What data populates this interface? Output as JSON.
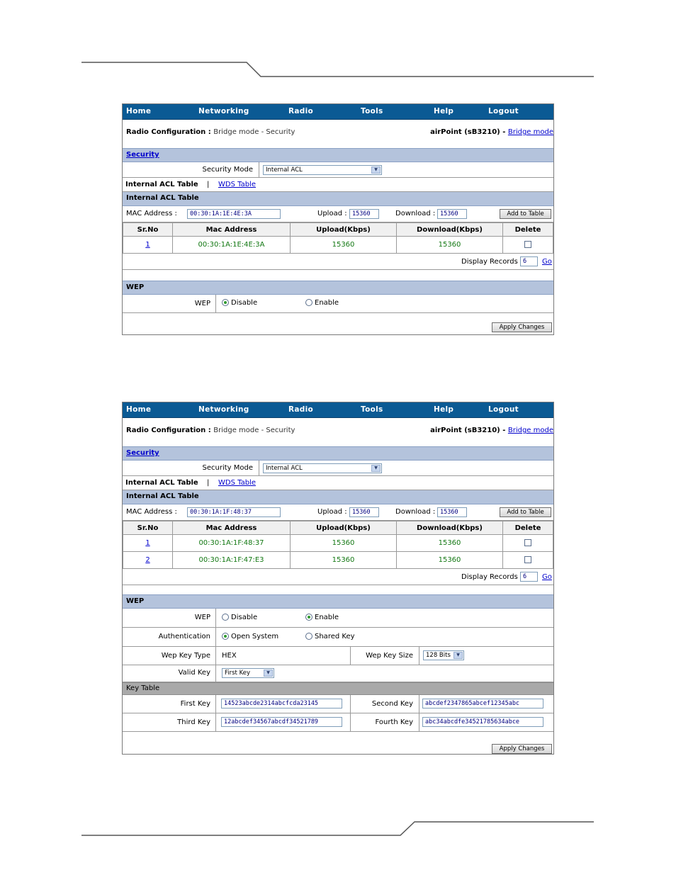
{
  "panels": [
    {
      "nav": [
        "Home",
        "Networking",
        "Radio",
        "Tools",
        "Help",
        "Logout"
      ],
      "breadcrumb": {
        "label": "Radio Configuration :",
        "path": "Bridge mode -  Security"
      },
      "device": {
        "name": "airPoint (sB3210) -",
        "mode_link": "Bridge mode"
      },
      "security_header": "Security",
      "security_mode_label": "Security Mode",
      "security_mode_value": "Internal ACL",
      "tabs": {
        "active": "Internal ACL Table",
        "separator": "|",
        "other": "WDS Table"
      },
      "acl_header": "Internal ACL Table",
      "mac_label": "MAC Address :",
      "mac_value": "00:30:1A:1E:4E:3A",
      "upload_label": "Upload :",
      "upload_value": "15360",
      "download_label": "Download :",
      "download_value": "15360",
      "add_button": "Add to Table",
      "columns": [
        "Sr.No",
        "Mac Address",
        "Upload(Kbps)",
        "Download(Kbps)",
        "Delete"
      ],
      "rows": [
        {
          "sr": "1",
          "mac": "00:30:1A:1E:4E:3A",
          "up": "15360",
          "down": "15360"
        }
      ],
      "display_records_label": "Display Records",
      "display_records_value": "6",
      "go_link": "Go",
      "wep_header": "WEP",
      "wep_label": "WEP",
      "wep_disable": "Disable",
      "wep_enable": "Enable",
      "wep_selected": "Disable",
      "apply_button": "Apply Changes"
    },
    {
      "nav": [
        "Home",
        "Networking",
        "Radio",
        "Tools",
        "Help",
        "Logout"
      ],
      "breadcrumb": {
        "label": "Radio Configuration :",
        "path": "Bridge mode -  Security"
      },
      "device": {
        "name": "airPoint (sB3210) -",
        "mode_link": "Bridge mode"
      },
      "security_header": "Security",
      "security_mode_label": "Security Mode",
      "security_mode_value": "Internal ACL",
      "tabs": {
        "active": "Internal ACL Table",
        "separator": "|",
        "other": "WDS Table"
      },
      "acl_header": "Internal ACL Table",
      "mac_label": "MAC Address :",
      "mac_value": "00:30:1A:1F:48:37",
      "upload_label": "Upload :",
      "upload_value": "15360",
      "download_label": "Download :",
      "download_value": "15360",
      "add_button": "Add to Table",
      "columns": [
        "Sr.No",
        "Mac Address",
        "Upload(Kbps)",
        "Download(Kbps)",
        "Delete"
      ],
      "rows": [
        {
          "sr": "1",
          "mac": "00:30:1A:1F:48:37",
          "up": "15360",
          "down": "15360"
        },
        {
          "sr": "2",
          "mac": "00:30:1A:1F:47:E3",
          "up": "15360",
          "down": "15360"
        }
      ],
      "display_records_label": "Display Records",
      "display_records_value": "6",
      "go_link": "Go",
      "wep_header": "WEP",
      "wep_label": "WEP",
      "wep_disable": "Disable",
      "wep_enable": "Enable",
      "wep_selected": "Enable",
      "auth_label": "Authentication",
      "auth_open": "Open System",
      "auth_shared": "Shared Key",
      "auth_selected": "Open System",
      "key_type_label": "Wep Key Type",
      "key_type_value": "HEX",
      "key_size_label": "Wep Key Size",
      "key_size_value": "128 Bits",
      "valid_key_label": "Valid Key",
      "valid_key_value": "First Key",
      "key_table_header": "Key Table",
      "first_key_label": "First Key",
      "first_key_value": "14523abcde2314abcfcda23145",
      "second_key_label": "Second Key",
      "second_key_value": "abcdef2347865abcef12345abc",
      "third_key_label": "Third Key",
      "third_key_value": "12abcdef34567abcdf34521789",
      "fourth_key_label": "Fourth Key",
      "fourth_key_value": "abc34abcdfe34521785634abce",
      "apply_button": "Apply Changes"
    }
  ],
  "colors": {
    "nav_bg": "#0b5a94",
    "section_bg": "#b4c3dc",
    "table_text": "#117711",
    "link": "#0000cc"
  }
}
